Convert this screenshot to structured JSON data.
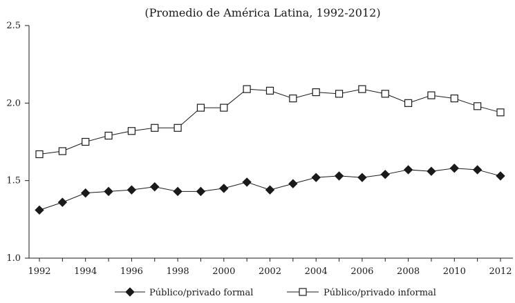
{
  "chart_data": {
    "type": "line",
    "title": "(Promedio de América Latina, 1992-2012)",
    "xlabel": "",
    "ylabel": "",
    "xlim": [
      1992,
      2012
    ],
    "ylim": [
      1.0,
      2.5
    ],
    "yticks": [
      "1.0",
      "1.5",
      "2.0",
      "2.5"
    ],
    "xticks": [
      "1992",
      "1994",
      "1996",
      "1998",
      "2000",
      "2002",
      "2004",
      "2006",
      "2008",
      "2010",
      "2012"
    ],
    "x": [
      1992,
      1993,
      1994,
      1995,
      1996,
      1997,
      1998,
      1999,
      2000,
      2001,
      2002,
      2003,
      2004,
      2005,
      2006,
      2007,
      2008,
      2009,
      2010,
      2011,
      2012
    ],
    "series": [
      {
        "name": "Público/privado formal",
        "marker": "filled-diamond",
        "values": [
          1.31,
          1.36,
          1.42,
          1.43,
          1.44,
          1.46,
          1.43,
          1.43,
          1.45,
          1.49,
          1.44,
          1.48,
          1.52,
          1.53,
          1.52,
          1.54,
          1.57,
          1.56,
          1.58,
          1.57,
          1.53
        ]
      },
      {
        "name": "Público/privado informal",
        "marker": "open-square",
        "values": [
          1.67,
          1.69,
          1.75,
          1.79,
          1.82,
          1.84,
          1.84,
          1.97,
          1.97,
          2.09,
          2.08,
          2.03,
          2.07,
          2.06,
          2.09,
          2.06,
          2.0,
          2.05,
          2.03,
          1.98,
          1.94
        ]
      }
    ],
    "legend_position": "bottom",
    "grid": false
  }
}
